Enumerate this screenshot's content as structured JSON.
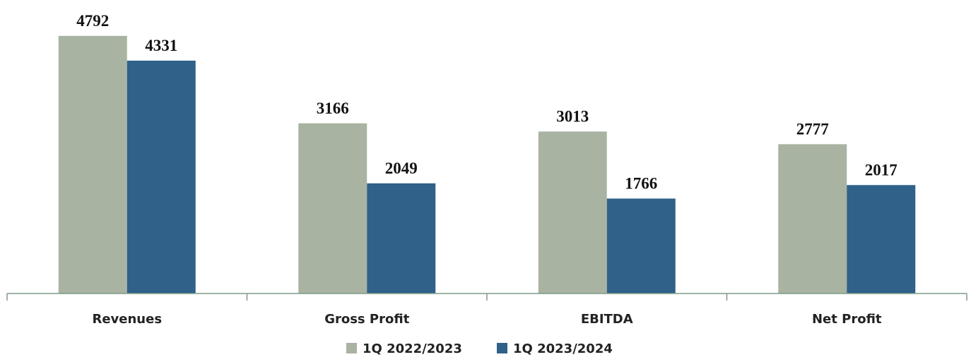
{
  "chart_data": {
    "type": "bar",
    "categories": [
      "Revenues",
      "Gross Profit",
      "EBITDA",
      "Net Profit"
    ],
    "series": [
      {
        "name": "1Q 2022/2023",
        "color": "#a9b3a1",
        "values": [
          4792,
          3166,
          3013,
          2777
        ]
      },
      {
        "name": "1Q 2023/2024",
        "color": "#2f6189",
        "values": [
          4331,
          2049,
          1766,
          2017
        ]
      }
    ],
    "ylim": [
      0,
      5000
    ],
    "legend": "bottom"
  }
}
